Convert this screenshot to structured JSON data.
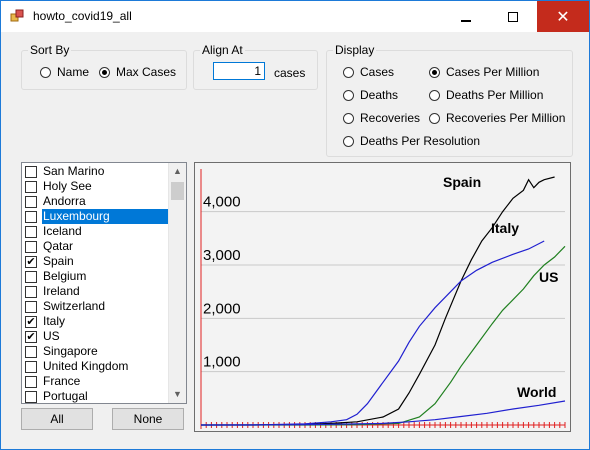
{
  "window": {
    "title": "howto_covid19_all"
  },
  "sort_by": {
    "label": "Sort By",
    "options": [
      {
        "label": "Name",
        "checked": false
      },
      {
        "label": "Max Cases",
        "checked": true
      }
    ]
  },
  "align_at": {
    "label": "Align At",
    "value": "1",
    "unit": "cases"
  },
  "display": {
    "label": "Display",
    "options": [
      {
        "label": "Cases",
        "checked": false
      },
      {
        "label": "Cases Per Million",
        "checked": true
      },
      {
        "label": "Deaths",
        "checked": false
      },
      {
        "label": "Deaths Per Million",
        "checked": false
      },
      {
        "label": "Recoveries",
        "checked": false
      },
      {
        "label": "Recoveries Per Million",
        "checked": false
      },
      {
        "label": "Deaths Per Resolution",
        "checked": false
      }
    ]
  },
  "countries": [
    {
      "name": "San Marino",
      "checked": false,
      "selected": false
    },
    {
      "name": "Holy See",
      "checked": false,
      "selected": false
    },
    {
      "name": "Andorra",
      "checked": false,
      "selected": false
    },
    {
      "name": "Luxembourg",
      "checked": false,
      "selected": true
    },
    {
      "name": "Iceland",
      "checked": false,
      "selected": false
    },
    {
      "name": "Qatar",
      "checked": false,
      "selected": false
    },
    {
      "name": "Spain",
      "checked": true,
      "selected": false
    },
    {
      "name": "Belgium",
      "checked": false,
      "selected": false
    },
    {
      "name": "Ireland",
      "checked": false,
      "selected": false
    },
    {
      "name": "Switzerland",
      "checked": false,
      "selected": false
    },
    {
      "name": "Italy",
      "checked": true,
      "selected": false
    },
    {
      "name": "US",
      "checked": true,
      "selected": false
    },
    {
      "name": "Singapore",
      "checked": false,
      "selected": false
    },
    {
      "name": "United Kingdom",
      "checked": false,
      "selected": false
    },
    {
      "name": "France",
      "checked": false,
      "selected": false
    },
    {
      "name": "Portugal",
      "checked": false,
      "selected": false
    }
  ],
  "buttons": {
    "all": "All",
    "none": "None"
  },
  "chart_data": {
    "type": "line",
    "y_ticks": [
      "4,000",
      "3,000",
      "2,000",
      "1,000"
    ],
    "y_tick_values": [
      4000,
      3000,
      2000,
      1000
    ],
    "ylim": [
      0,
      4800
    ],
    "xlim": [
      0,
      70
    ],
    "grid": true,
    "series": [
      {
        "name": "Spain",
        "color": "#000000",
        "x": [
          0,
          10,
          20,
          25,
          30,
          35,
          38,
          40,
          42,
          45,
          47,
          50,
          52,
          54,
          56,
          58,
          60,
          62,
          63,
          64,
          65,
          66,
          68
        ],
        "y": [
          0,
          0,
          10,
          30,
          60,
          150,
          300,
          600,
          950,
          1500,
          2000,
          2700,
          3100,
          3450,
          3700,
          4000,
          4250,
          4400,
          4600,
          4450,
          4550,
          4600,
          4650
        ]
      },
      {
        "name": "Italy",
        "color": "#2020d0",
        "x": [
          0,
          10,
          20,
          25,
          28,
          30,
          32,
          35,
          38,
          40,
          42,
          45,
          48,
          50,
          53,
          56,
          60,
          63,
          66
        ],
        "y": [
          0,
          0,
          20,
          60,
          100,
          200,
          400,
          800,
          1200,
          1550,
          1850,
          2200,
          2500,
          2700,
          2900,
          3050,
          3200,
          3300,
          3450
        ]
      },
      {
        "name": "US",
        "color": "#208020",
        "x": [
          0,
          20,
          30,
          38,
          42,
          45,
          48,
          50,
          53,
          56,
          58,
          60,
          62,
          64,
          66,
          68,
          70
        ],
        "y": [
          0,
          0,
          5,
          30,
          150,
          400,
          800,
          1100,
          1500,
          1900,
          2150,
          2350,
          2550,
          2800,
          3000,
          3150,
          3350
        ]
      },
      {
        "name": "World",
        "color": "#2020d0",
        "x": [
          0,
          20,
          30,
          35,
          40,
          45,
          50,
          55,
          60,
          65,
          70
        ],
        "y": [
          0,
          5,
          20,
          30,
          60,
          100,
          160,
          220,
          300,
          370,
          450
        ]
      }
    ]
  }
}
